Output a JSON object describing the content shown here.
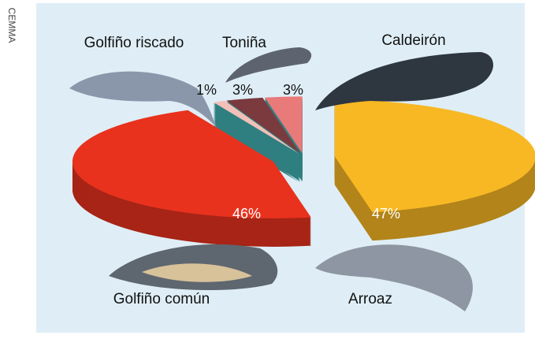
{
  "credit": "CEMMA",
  "chart_data": {
    "type": "pie",
    "categories": [
      "Arroaz",
      "Golfiño común",
      "Golfiño riscado",
      "Toniña",
      "Caldeirón"
    ],
    "values": [
      47,
      46,
      1,
      3,
      3
    ],
    "value_labels": [
      "47%",
      "46%",
      "1%",
      "3%",
      "3%"
    ],
    "colors": [
      "#f7b824",
      "#e8321e",
      "#f2c0b8",
      "#7a3a3e",
      "#e87a7a"
    ]
  }
}
